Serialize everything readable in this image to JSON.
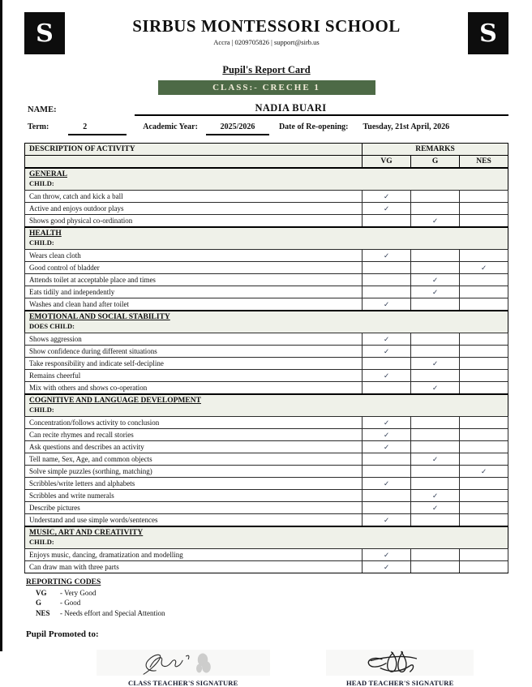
{
  "colors": {
    "banner_green": "#4d6a46",
    "banner_cream": "#f2ecd9",
    "section_bg": "#eff1e9",
    "check": "#25324b"
  },
  "school": {
    "logo_letter": "S",
    "name": "SIRBUS MONTESSORI SCHOOL",
    "contact": "Accra | 0209705826 | support@sirb.us"
  },
  "report": {
    "title": "Pupil's Report Card",
    "class_banner": "CLASS:- CRECHE 1",
    "name_label": "NAME:",
    "pupil_name": "NADIA BUARI",
    "term_label": "Term:",
    "term_value": "2",
    "academic_year_label": "Academic Year:",
    "academic_year_value": "2025/2026",
    "reopening_label": "Date of Re-opening:",
    "reopening_value": "Tuesday, 21st April, 2026"
  },
  "table": {
    "check_glyph": "✓",
    "headers": {
      "description": "DESCRIPTION OF ACTIVITY",
      "remarks": "REMARKS",
      "cols": [
        "VG",
        "G",
        "NES"
      ]
    },
    "sections": [
      {
        "title": "GENERAL",
        "subtitle": "CHILD:",
        "rows": [
          {
            "label": "Can throw, catch and kick a ball",
            "mark": "VG"
          },
          {
            "label": "Active and enjoys outdoor plays",
            "mark": "VG"
          },
          {
            "label": "Shows good physical co-ordination",
            "mark": "G"
          }
        ]
      },
      {
        "title": "HEALTH",
        "subtitle": "CHILD:",
        "rows": [
          {
            "label": "Wears clean cloth",
            "mark": "VG"
          },
          {
            "label": "Good control of bladder",
            "mark": "NES"
          },
          {
            "label": "Attends toilet at acceptable place and times",
            "mark": "G"
          },
          {
            "label": "Eats tidily and independently",
            "mark": "G"
          },
          {
            "label": "Washes and clean hand after toilet",
            "mark": "VG"
          }
        ]
      },
      {
        "title": "EMOTIONAL AND SOCIAL STABILITY",
        "subtitle": "DOES CHILD:",
        "rows": [
          {
            "label": "Shows aggression",
            "mark": "VG"
          },
          {
            "label": "Show confidence during different situations",
            "mark": "VG"
          },
          {
            "label": "Take responsibility and indicate self-decipline",
            "mark": "G"
          },
          {
            "label": "Remains cheerful",
            "mark": "VG"
          },
          {
            "label": "Mix with others and shows co-operation",
            "mark": "G"
          }
        ]
      },
      {
        "title": "COGNITIVE AND LANGUAGE DEVELOPMENT",
        "subtitle": "CHILD:",
        "rows": [
          {
            "label": "Concentration/follows activity to conclusion",
            "mark": "VG"
          },
          {
            "label": "Can recite rhymes and recall stories",
            "mark": "VG"
          },
          {
            "label": "Ask questions and describes an activity",
            "mark": "VG"
          },
          {
            "label": "Tell name, Sex, Age, and common objects",
            "mark": "G"
          },
          {
            "label": "Solve simple puzzles (sorthing, matching)",
            "mark": "NES"
          },
          {
            "label": "Scribbles/write letters and alphabets",
            "mark": "VG"
          },
          {
            "label": "Scribbles and write numerals",
            "mark": "G"
          },
          {
            "label": "Describe pictures",
            "mark": "G"
          },
          {
            "label": "Understand and use simple words/sentences",
            "mark": "VG"
          }
        ]
      },
      {
        "title": "MUSIC, ART AND CREATIVITY",
        "subtitle": "CHILD:",
        "rows": [
          {
            "label": "Enjoys music, dancing, dramatization and modelling",
            "mark": "VG"
          },
          {
            "label": "Can draw man with three parts",
            "mark": "VG"
          }
        ]
      }
    ]
  },
  "reporting_codes": {
    "title": "REPORTING CODES",
    "items": [
      {
        "code": "VG",
        "meaning": "- Very Good"
      },
      {
        "code": "G",
        "meaning": "- Good"
      },
      {
        "code": "NES",
        "meaning": "- Needs effort and Special Attention"
      }
    ]
  },
  "promotion": {
    "label": "Pupil Promoted to:"
  },
  "signatures": [
    {
      "label": "CLASS TEACHER'S SIGNATURE"
    },
    {
      "label": "HEAD TEACHER'S SIGNATURE"
    }
  ]
}
